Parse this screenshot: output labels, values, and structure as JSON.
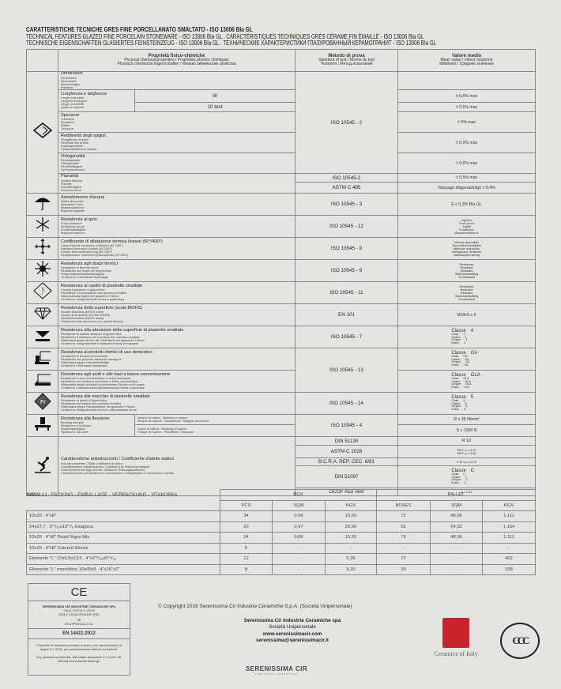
{
  "title": {
    "line1": "CARATTERISTICHE TECNICHE GRES FINE PORCELLANATO SMALTATO - ISO 13006 BIa GL",
    "line2": "TECHNICAL FEATURES GLAZED FINE PORCELAIN STONEWARE - ISO 13006 BIa GL . CARACTÉRISTIQUES TECHNIQUES GRÈS CÉRAME FIN ÉMAILLÉ - ISO 13006 BIa GL",
    "line3": "TECHNISCHE EIGENSCHAFTEN GLASIERTES FEINSTEINZEUG - ISO 13006 BIa GL . ТЕХНИЧЕСКИЕ ХАРАКТЕРИСТИКИ ГЛАЗУРОВАННЫЙ КЕРАМОГРАНИТ - ISO 13006 BIa GL"
  },
  "header": {
    "property": [
      "Proprietà fisico-chimiche",
      "Physical chemical properties / Propriétés physico chimiques",
      "Physisch chemische Eigenschaften / Физико химические свойства"
    ],
    "method": [
      "Metodo di prova",
      "Standard of test / Norme du test",
      "Testnorm / Метод испытаний"
    ],
    "value": [
      "Valore medio",
      "Mean value / Valeur moyenne",
      "Mittelwert / Среднее значение"
    ]
  },
  "props": {
    "dim": [
      "Dimensioni",
      "Dimensions",
      "Dimensions",
      "Abmessungen",
      "Размеры"
    ],
    "length": [
      "Lunghezza e larghezza",
      "Length and width",
      "Longueur et largeur",
      "Länge und Breite",
      "Длина и ширина"
    ],
    "thick": [
      "Spessore",
      "Thickness",
      "Epaisseur",
      "Stärke",
      "Толщина"
    ],
    "straight": [
      "Rettilineità degli spigoli",
      "Straightness of sides",
      "Rectitude des arêtes",
      "Kantengeradheit",
      "Прямолинейность кромок"
    ],
    "ortho": [
      "Ortogonalità",
      "Rectangularity",
      "Orthogonalité",
      "Rechtwinkligkeit",
      "Ортогональность"
    ],
    "planar": [
      "Planarità",
      "Surface flatness",
      "Planéité",
      "Ebenflächigkeit",
      "Плоскостность"
    ],
    "water": [
      "Assorbimento d'acqua",
      "Water absorption",
      "Absorption d'eau",
      "Wasseraufnahme",
      "Водопоглощение"
    ],
    "frost": [
      "Resistenza al gelo",
      "Frost resistance",
      "Résistance au gel",
      "Frostbeständigkeit",
      "Морозостойкость"
    ],
    "expansion": [
      "Coefficiente di dilatazione termica lineare (50°/400°)",
      "Linear thermal expansion coefficient (50°/400°)",
      "Dilatation thermique linéaire (50°/400°)",
      "Lineare Wärmeausdehnung (50°/400°)",
      "Коэффициент линейного расширения (50°/400°)"
    ],
    "shock": [
      "Resistenza agli sbalzi termici",
      "Resistance to thermal shock",
      "Résistance aux écarts de température",
      "Temperaturwechselbeständigkeit",
      "Стойкость к тепловым перепадам"
    ],
    "crazing": [
      "Resistenza al cavillo di piastrelle smaltate",
      "Crazing resistance of glazed tiles",
      "Résistance à la tressaillure des carreaux émaillés",
      "Haarrissbeständigkeit der glasierten Fliesen",
      "Стойкость глазурованной плитки к кракелюру"
    ],
    "mohs": [
      "Resistenza della superficie (scala MOHS)",
      "Scratch hardness (MOHS scale)",
      "Dureté de la surface (échelle MOHS)",
      "Oberflächenhärte (MOHS skala)",
      "Поверхностная прочность (по шкале Мооса)"
    ],
    "abrasion": [
      "Resistenza alla abrasione della superficie di piastrelle smaltate",
      "Resistance to surface abrasion of glazed tiles",
      "Résistance à l'abrasion de la surface des carreaux émaillés",
      "Widerstand gegen Abrieb der Oberfläche der glasierten Fliesen",
      "Стойкость глазурованной к поверхностному истиранию"
    ],
    "household": [
      "Resistenza ai prodotti chimici di uso domestico",
      "Resistance to household chemicals",
      "Résistance aux produits chimiques ménagers",
      "Widerstand gegen Haushaltsreiniger",
      "Стойкость к бытовым химикатам"
    ],
    "acids": [
      "Resistenza agli acidi e alle basi a bassa concentrazione",
      "Resistance to low concentrations of acids and bases",
      "Résistance aux acides et aux bases à faible concentration",
      "Widerstand gegen schwach konzentrierten Säuren und Laugen",
      "Стойкость к низкоконцентрированным кислотам и щелочам"
    ],
    "stains": [
      "Resistenza alle macchie di piastrelle smaltate",
      "Resistance to stains of glazed tiles",
      "Résistance aux taches des carreaux émaillés",
      "Widerstand gegen Fleckenbildner der glasierten Fliesen",
      "Стойкость глазурованной плитки к образованию пятен"
    ],
    "flexion": [
      "Resistenza alla flessione",
      "Bending strength",
      "Résistance à la flexion",
      "Biegezugfestigkeit",
      "Прочность на изгиб"
    ],
    "flexion_sub": [
      "Modulo di rottura - Modulus of rupture",
      "Module de rupture - Bruchmodul - Модуль жесткости",
      "Carico di rottura - Breaking of rupture",
      "Charge de rupture - Bruchkraft - Нагрузка"
    ],
    "slip": [
      "Caratteristiche antisdrucciolo / Coefficiente d'attrito statico",
      "Anti-slip properties / Static coefficient of friction",
      "Caractéristiques antidérapantes / Coefficient de frottement statique",
      "Rutschhemmende Eigenschaft / Statischer Reibungskoeffizient",
      "Характеристики устойчивости к скольжению / Коэффициент статического трения"
    ]
  },
  "length_sub": {
    "w": "W",
    "test": "10 test"
  },
  "methods": {
    "iso2": "ISO 10545 - 2",
    "iso2b": "ISO 10545-2",
    "astm485": "ASTM C 485",
    "iso3": "ISO 10545 - 3",
    "iso12": "ISO 10545 - 12",
    "iso8": "ISO 10545 - 8",
    "iso9": "ISO 10545 - 9",
    "iso11": "ISO 10545 - 11",
    "en101": "EN 101",
    "iso7": "ISO 10545 - 7",
    "iso13": "ISO 10545 - 13",
    "iso14": "ISO 10545 - 14",
    "iso4": "ISO 10545 - 4",
    "din51130": "DIN 51130",
    "astm1028": "ASTM C 1028",
    "bcra": "B.C.R.A. REP. CEC. 6/81",
    "din51097": "DIN 51097",
    "dcof": "DCOF Acu Test"
  },
  "values": {
    "length_w": "± 0,6% max",
    "length_test": "± 0,5% max",
    "thick": "± 5% max",
    "straight": "± 0,5% max",
    "ortho": "± 0,6% max",
    "planar": "± 0,5% max",
    "warpage": "Warpage diagonal/edge ± 0,4%",
    "water": "E ≤ 0,3% BIa GL",
    "frost": [
      "Ingelivo",
      "Frost proof",
      "Ingélif",
      "Frostsicher",
      "Морозостойкость"
    ],
    "expansion": [
      "Metodo disponibile",
      "Test method available",
      "Méthode disponible",
      "Verfügbares Verfahren",
      "Имеющийся метод"
    ],
    "shock": [
      "Resistente",
      "Resistant",
      "Résistant",
      "Widerstandsfähig",
      "Устойчивый"
    ],
    "crazing": [
      "Resistente",
      "Resistant",
      "Résistant",
      "Widerstandsfähig",
      "Устойчивый"
    ],
    "mohs": "MOHS ≥ 6",
    "class_labels": [
      "Classe",
      "Class",
      "Classe",
      "Gruppe",
      "Класс"
    ],
    "abrasion": "4",
    "household": "GA",
    "acids": "GLA",
    "stains": "5",
    "flex_r": "R ≥ 35 N/mm²",
    "flex_s": "S ≥ 1300 N",
    "r10": "R 10",
    "astm_dry": "DRY: µ > 0,70",
    "astm_wet": "WET: µ > 0,60",
    "bcra": "0,40 ≤ µ ≤ 0,74",
    "din51097": "C",
    "dcof": "µ > 0,42"
  },
  "packing": {
    "title_bold": "IMBALLI",
    "title_rest": " - PACKING - EMBALLAGE - VERPACKUNG - УПАКОВКА",
    "groups": [
      "BOX",
      "PALLET"
    ],
    "columns": [
      "PCS",
      "SQM",
      "KGS",
      "BOXES",
      "SQM",
      "KGS"
    ],
    "rows": [
      [
        "10x20 . 4\"x8\"",
        "34",
        "0,68",
        "15,20",
        "72",
        "48,96",
        "1.111"
      ],
      [
        "24x27,7 . 9\"⁷/₁₆x10\"⁷/₈ Esagona",
        "20",
        "0,97",
        "20,50",
        "56",
        "54,32",
        "1.164"
      ],
      [
        "10x20 . 4\"x8\" Road Signs Mix",
        "34",
        "0,68",
        "15,20",
        "72",
        "48,96",
        "1.111"
      ],
      [
        "10x20 . 4\"x8\" Colored Words",
        "6",
        "-",
        "-",
        "-",
        "-",
        "-"
      ],
      [
        "Elemento \"L\" 10x6,5x13,5 . 4\"x2\"⁹/₁₆x5\"⁵/₁₆",
        "12",
        "-",
        "5,36",
        "72",
        "-",
        "402"
      ],
      [
        "Elemento \"L\" monolitico 10x40x5 . 4\"x16\"x2\"",
        "8",
        "-",
        "9,20",
        "35",
        "-",
        "338"
      ]
    ]
  },
  "ce": {
    "mark": "CE",
    "company": "SERENISSIMA CIR INDUSTRIE CERAMICHE SPA",
    "address1": "VIA A. VOLTA 9, 23/25",
    "address2": "42013 CASALGRANDE (RE)",
    "year": "05",
    "code": "001CPR2013-07-01",
    "norm": "EN 14411:2012",
    "it": "Piastrelle di ceramica pressate a secco, con assorbimento di acqua E ≤ 0,5%, per pavimentazioni interne ed esterne.",
    "en": "Dry pressed ceramic tile, with water absorption E ≤ 0,5%, for internal and external floorings."
  },
  "footer": {
    "copyright": "© Copyright 2016 Serenissima Cir Industrie Ceramiche S.p.A. (Società Unipersonale)",
    "company": "Serenissima Cir Industrie Ceramiche spa",
    "type": "Società Unipersonale",
    "web": "www.serenissimacir.com",
    "email": "serenissima@serenissimacir.it",
    "logo_name": "SERENISSIMA CIR",
    "logo_sub": "INDUSTRIE CERAMICHE",
    "coi": "Ceramics of Italy",
    "ccc": "CCC"
  }
}
